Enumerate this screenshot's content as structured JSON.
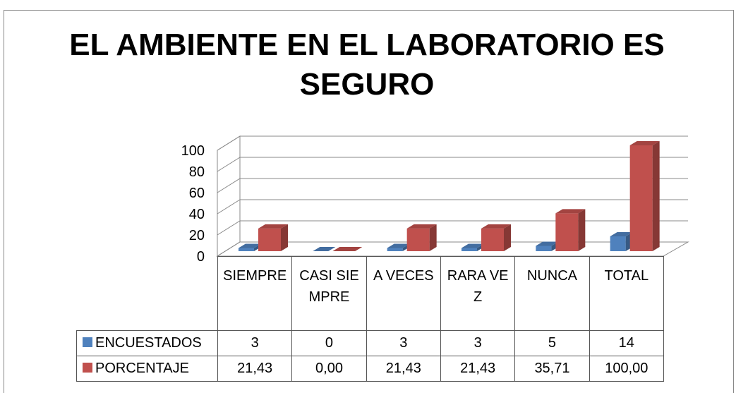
{
  "chart_data": {
    "type": "bar3d",
    "title": "EL AMBIENTE EN EL LABORATORIO ES SEGURO",
    "categories": [
      "SIEMPRE",
      "CASI SIEMPRE",
      "A VECES",
      "RARA VEZ",
      "NUNCA",
      "TOTAL"
    ],
    "series": [
      {
        "name": "ENCUESTADOS",
        "color": "#4f81bd",
        "values": [
          3,
          0,
          3,
          3,
          5,
          14
        ]
      },
      {
        "name": "PORCENTAJE",
        "color": "#c0504d",
        "values": [
          21.43,
          0,
          21.43,
          21.43,
          35.71,
          100
        ],
        "value_labels": [
          "21,43",
          "0,00",
          "21,43",
          "21,43",
          "35,71",
          "100,00"
        ]
      }
    ],
    "ylim": [
      0,
      100
    ],
    "yticks": [
      0,
      20,
      40,
      60,
      80,
      100
    ],
    "grid": true,
    "data_table": true
  }
}
